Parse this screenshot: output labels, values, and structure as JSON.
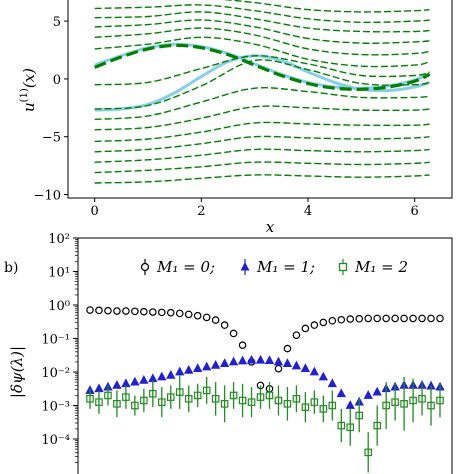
{
  "chart_data": [
    {
      "type": "line",
      "panel_label": "",
      "xlabel": "x",
      "ylabel": "u^(1)(x)",
      "xlim": [
        -0.5,
        6.7
      ],
      "ylim": [
        -10.3,
        7.0
      ],
      "xticks": [
        0,
        2,
        4,
        6
      ],
      "yticks": [
        -10,
        -5,
        0,
        5
      ],
      "xtick_labels": [
        "0",
        "2",
        "4",
        "6"
      ],
      "ytick_labels": [
        "−10",
        "−5",
        "0",
        "5"
      ],
      "grid": false,
      "series": [
        {
          "style": "dashed-bold",
          "color": "#008000",
          "x": [
            0,
            0.5,
            1.0,
            1.5,
            2.0,
            2.5,
            3.0,
            3.5,
            4.0,
            4.5,
            5.0,
            5.5,
            6.0,
            6.28
          ],
          "y": [
            1.0,
            1.9,
            2.6,
            2.9,
            2.7,
            2.1,
            1.2,
            0.3,
            -0.4,
            -0.8,
            -0.9,
            -0.7,
            -0.2,
            0.4
          ]
        },
        {
          "style": "solid-light",
          "color": "#87ceeb",
          "x": [
            0,
            0.5,
            1.0,
            1.5,
            2.0,
            2.5,
            3.0,
            3.5,
            4.0,
            4.5,
            5.0,
            5.5,
            6.0,
            6.28
          ],
          "y": [
            1.2,
            2.0,
            2.7,
            3.0,
            2.8,
            2.2,
            1.3,
            0.4,
            -0.3,
            -0.7,
            -0.8,
            -0.6,
            -0.1,
            0.5
          ]
        },
        {
          "style": "solid-light",
          "color": "#87ceeb",
          "x": [
            0,
            0.5,
            1.0,
            1.5,
            2.0,
            2.5,
            3.0,
            3.5,
            4.0,
            4.5,
            5.0,
            5.5,
            6.0,
            6.28
          ],
          "y": [
            -2.7,
            -2.6,
            -2.2,
            -1.2,
            0.2,
            1.5,
            2.0,
            1.6,
            0.6,
            -0.3,
            -0.9,
            -1.0,
            -0.7,
            -0.3
          ]
        },
        {
          "style": "dashed",
          "color": "#008000",
          "x": [
            0,
            1,
            2,
            3,
            4,
            5,
            6,
            6.28
          ],
          "y": [
            6.9,
            6.9,
            7.0,
            6.6,
            6.0,
            5.8,
            5.9,
            6.0
          ]
        },
        {
          "style": "dashed",
          "color": "#008000",
          "x": [
            0,
            1,
            2,
            3,
            4,
            5,
            6,
            6.28
          ],
          "y": [
            6.1,
            6.2,
            6.4,
            5.9,
            5.2,
            4.9,
            5.0,
            5.1
          ]
        },
        {
          "style": "dashed",
          "color": "#008000",
          "x": [
            0,
            1,
            2,
            3,
            4,
            5,
            6,
            6.28
          ],
          "y": [
            5.3,
            5.4,
            5.8,
            5.2,
            4.4,
            4.1,
            4.1,
            4.2
          ]
        },
        {
          "style": "dashed",
          "color": "#008000",
          "x": [
            0,
            1,
            2,
            3,
            4,
            5,
            6,
            6.28
          ],
          "y": [
            4.5,
            4.7,
            5.1,
            4.5,
            3.5,
            3.1,
            3.2,
            3.3
          ]
        },
        {
          "style": "dashed",
          "color": "#008000",
          "x": [
            0,
            1,
            2,
            3,
            4,
            5,
            6,
            6.28
          ],
          "y": [
            3.6,
            3.9,
            4.4,
            3.8,
            2.6,
            2.1,
            2.2,
            2.4
          ]
        },
        {
          "style": "dashed",
          "color": "#008000",
          "x": [
            0,
            1,
            2,
            3,
            4,
            5,
            6,
            6.28
          ],
          "y": [
            2.6,
            3.0,
            3.6,
            3.0,
            1.7,
            1.1,
            1.2,
            1.5
          ]
        },
        {
          "style": "dashed",
          "color": "#008000",
          "x": [
            0,
            1,
            2,
            3,
            4,
            5,
            6,
            6.28
          ],
          "y": [
            -0.5,
            -0.3,
            0.9,
            2.0,
            1.3,
            0.3,
            0.3,
            0.6
          ]
        },
        {
          "style": "dashed",
          "color": "#008000",
          "x": [
            0,
            1,
            2,
            3,
            4,
            5,
            6,
            6.28
          ],
          "y": [
            -2.6,
            -2.3,
            -0.6,
            1.6,
            0.8,
            -0.4,
            -0.5,
            -0.3
          ]
        },
        {
          "style": "dashed",
          "color": "#008000",
          "x": [
            0,
            1,
            2,
            3,
            4,
            5,
            6,
            6.28
          ],
          "y": [
            -3.5,
            -3.2,
            -2.0,
            -0.8,
            -1.1,
            -1.6,
            -1.6,
            -1.5
          ]
        },
        {
          "style": "dashed",
          "color": "#008000",
          "x": [
            0,
            1,
            2,
            3,
            4,
            5,
            6,
            6.28
          ],
          "y": [
            -4.4,
            -4.2,
            -3.4,
            -2.4,
            -2.5,
            -2.7,
            -2.7,
            -2.6
          ]
        },
        {
          "style": "dashed",
          "color": "#008000",
          "x": [
            0,
            1,
            2,
            3,
            4,
            5,
            6,
            6.28
          ],
          "y": [
            -5.4,
            -5.2,
            -4.6,
            -3.8,
            -3.9,
            -4.0,
            -4.0,
            -3.9
          ]
        },
        {
          "style": "dashed",
          "color": "#008000",
          "x": [
            0,
            1,
            2,
            3,
            4,
            5,
            6,
            6.28
          ],
          "y": [
            -6.3,
            -6.1,
            -5.6,
            -5.0,
            -5.1,
            -5.2,
            -5.1,
            -5.0
          ]
        },
        {
          "style": "dashed",
          "color": "#008000",
          "x": [
            0,
            1,
            2,
            3,
            4,
            5,
            6,
            6.28
          ],
          "y": [
            -7.2,
            -7.0,
            -6.6,
            -6.1,
            -6.2,
            -6.3,
            -6.2,
            -6.1
          ]
        },
        {
          "style": "dashed",
          "color": "#008000",
          "x": [
            0,
            1,
            2,
            3,
            4,
            5,
            6,
            6.28
          ],
          "y": [
            -8.1,
            -7.9,
            -7.6,
            -7.2,
            -7.3,
            -7.4,
            -7.3,
            -7.2
          ]
        },
        {
          "style": "dashed",
          "color": "#008000",
          "x": [
            0,
            1,
            2,
            3,
            4,
            5,
            6,
            6.28
          ],
          "y": [
            -9.0,
            -8.9,
            -8.6,
            -8.3,
            -8.4,
            -8.5,
            -8.4,
            -8.3
          ]
        }
      ]
    },
    {
      "type": "scatter",
      "panel_label": "b)",
      "xlabel": "",
      "ylabel": "|δψ(λ)|",
      "yscale": "log",
      "ylim_exp": [
        -5,
        2
      ],
      "ytick_exponents": [
        2,
        1,
        0,
        -1,
        -2,
        -3,
        -4
      ],
      "ytick_labels": [
        "10²",
        "10¹",
        "10⁰",
        "10⁻¹",
        "10⁻²",
        "10⁻³",
        "10⁻⁴"
      ],
      "n_points": 40,
      "legend": {
        "placement": "top-center",
        "entries": [
          "M₁ = 0;",
          "M₁ = 1;",
          "M₁ = 2"
        ]
      },
      "series": [
        {
          "name": "M₁ = 0;",
          "marker": "circle-open",
          "color": "#000000",
          "log10_values": [
            -0.15,
            -0.16,
            -0.17,
            -0.18,
            -0.18,
            -0.19,
            -0.2,
            -0.21,
            -0.22,
            -0.23,
            -0.25,
            -0.28,
            -0.32,
            -0.37,
            -0.45,
            -0.6,
            -0.85,
            -1.2,
            -1.7,
            -2.4,
            -2.5,
            -1.9,
            -1.3,
            -0.9,
            -0.7,
            -0.6,
            -0.52,
            -0.47,
            -0.44,
            -0.42,
            -0.41,
            -0.4,
            -0.4,
            -0.4,
            -0.4,
            -0.4,
            -0.4,
            -0.4,
            -0.4,
            -0.4
          ]
        },
        {
          "name": "M₁ = 1;",
          "marker": "triangle",
          "color": "#2222cc",
          "log10_values": [
            -2.55,
            -2.5,
            -2.45,
            -2.4,
            -2.35,
            -2.3,
            -2.25,
            -2.2,
            -2.15,
            -2.1,
            -2.0,
            -1.95,
            -1.9,
            -1.85,
            -1.8,
            -1.75,
            -1.7,
            -1.67,
            -1.65,
            -1.65,
            -1.66,
            -1.7,
            -1.75,
            -1.82,
            -1.9,
            -2.0,
            -2.15,
            -2.35,
            -2.65,
            -3.0,
            -2.9,
            -2.7,
            -2.6,
            -2.5,
            -2.45,
            -2.4,
            -2.4,
            -2.4,
            -2.42,
            -2.45
          ]
        },
        {
          "name": "M₁ = 2",
          "marker": "square-open",
          "color": "#228b22",
          "log10_values": [
            -2.8,
            -2.9,
            -2.7,
            -2.95,
            -2.75,
            -3.0,
            -2.85,
            -2.65,
            -2.9,
            -2.75,
            -2.6,
            -2.8,
            -2.7,
            -2.55,
            -2.8,
            -2.95,
            -2.7,
            -2.85,
            -2.9,
            -2.75,
            -2.7,
            -2.85,
            -2.95,
            -2.8,
            -3.05,
            -2.9,
            -3.1,
            -3.0,
            -3.6,
            -3.65,
            -3.3,
            -4.4,
            -3.6,
            -3.0,
            -2.9,
            -2.95,
            -2.85,
            -2.8,
            -3.0,
            -2.85
          ],
          "log10_error": [
            0.3,
            0.35,
            0.3,
            0.4,
            0.35,
            0.3,
            0.35,
            0.4,
            0.45,
            0.35,
            0.5,
            0.4,
            0.35,
            0.4,
            0.5,
            0.55,
            0.4,
            0.5,
            0.45,
            0.35,
            0.4,
            0.45,
            0.5,
            0.4,
            0.45,
            0.35,
            0.4,
            0.45,
            0.5,
            0.55,
            0.5,
            0.6,
            0.6,
            0.7,
            0.55,
            0.8,
            0.65,
            0.5,
            0.6,
            0.5
          ]
        }
      ]
    }
  ],
  "colors": {
    "mean_line": "#008000",
    "true_curve": "#87ceeb",
    "m0": "#000000",
    "m1": "#2222cc",
    "m2": "#228b22"
  }
}
